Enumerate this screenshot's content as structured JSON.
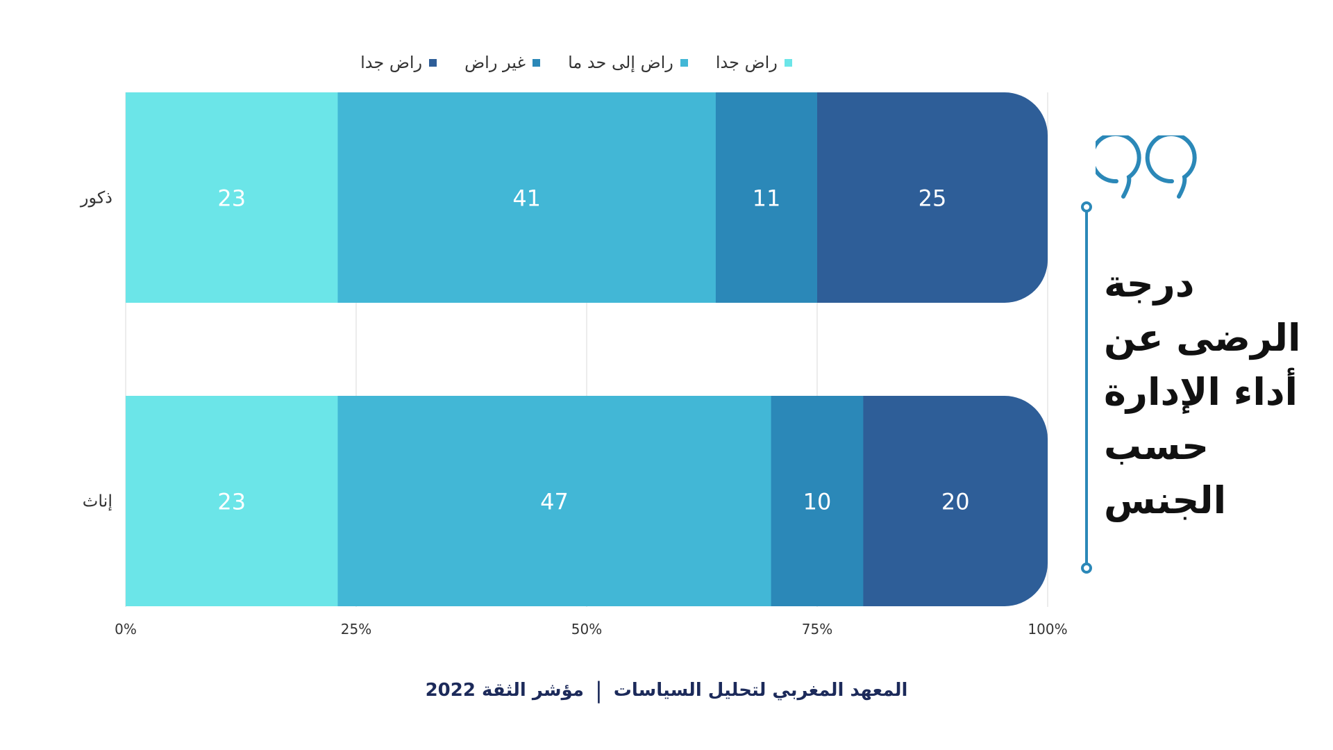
{
  "chart_data": {
    "type": "bar",
    "orientation": "horizontal",
    "stacked": "percent",
    "categories": [
      "ذكور",
      "إناث"
    ],
    "series": [
      {
        "name": "راض جدا",
        "values": [
          23,
          23
        ],
        "color": "#6be5e8",
        "label_color": "#ffffff"
      },
      {
        "name": "راض إلى حد ما",
        "values": [
          41,
          47
        ],
        "color": "#42b7d6",
        "label_color": "#ffffff"
      },
      {
        "name": "غير راض",
        "values": [
          11,
          10
        ],
        "color": "#2b88b8",
        "label_color": "#ffffff"
      },
      {
        "name": "راض جدا",
        "values": [
          25,
          20
        ],
        "color": "#2e5e98",
        "label_color": "#ffffff"
      }
    ],
    "xticks": [
      "0%",
      "25%",
      "50%",
      "75%",
      "100%"
    ],
    "xlim": [
      0,
      100
    ],
    "grid": true,
    "legend_position": "top"
  },
  "title_lines": [
    "درجة",
    "الرضى عن",
    "أداء الإدارة",
    "حسب",
    "الجنس"
  ],
  "footer": {
    "institute": "المعهد المغربي لتحليل السياسات",
    "separator": "|",
    "index": "مؤشر الثقة 2022"
  },
  "accent_color": "#2b88b8"
}
